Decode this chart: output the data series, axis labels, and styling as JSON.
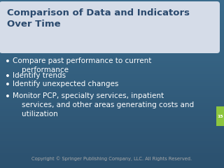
{
  "title_line1": "Comparison of Data and Indicators",
  "title_line2": "Over Time",
  "title_font_color": "#2b4a6e",
  "title_bg_color": "#d5dce8",
  "bg_color_top": "#3a6b8c",
  "bg_color_bottom": "#2b506e",
  "bullet_points": [
    "Compare past performance to current\n    performance",
    "Identify trends",
    "Identify unexpected changes",
    "Monitor PCP, specialty services, inpatient\n    services, and other areas generating costs and\n    utilization"
  ],
  "bullet_color": "#ffffff",
  "copyright_text": "Copyright © Springer Publishing Company, LLC. All Rights Reserved.",
  "copyright_color": "#aaaaaa",
  "page_number": "15",
  "tab_color": "#8dc63f",
  "title_fontsize": 9.5,
  "bullet_fontsize": 7.5,
  "copyright_fontsize": 4.8
}
